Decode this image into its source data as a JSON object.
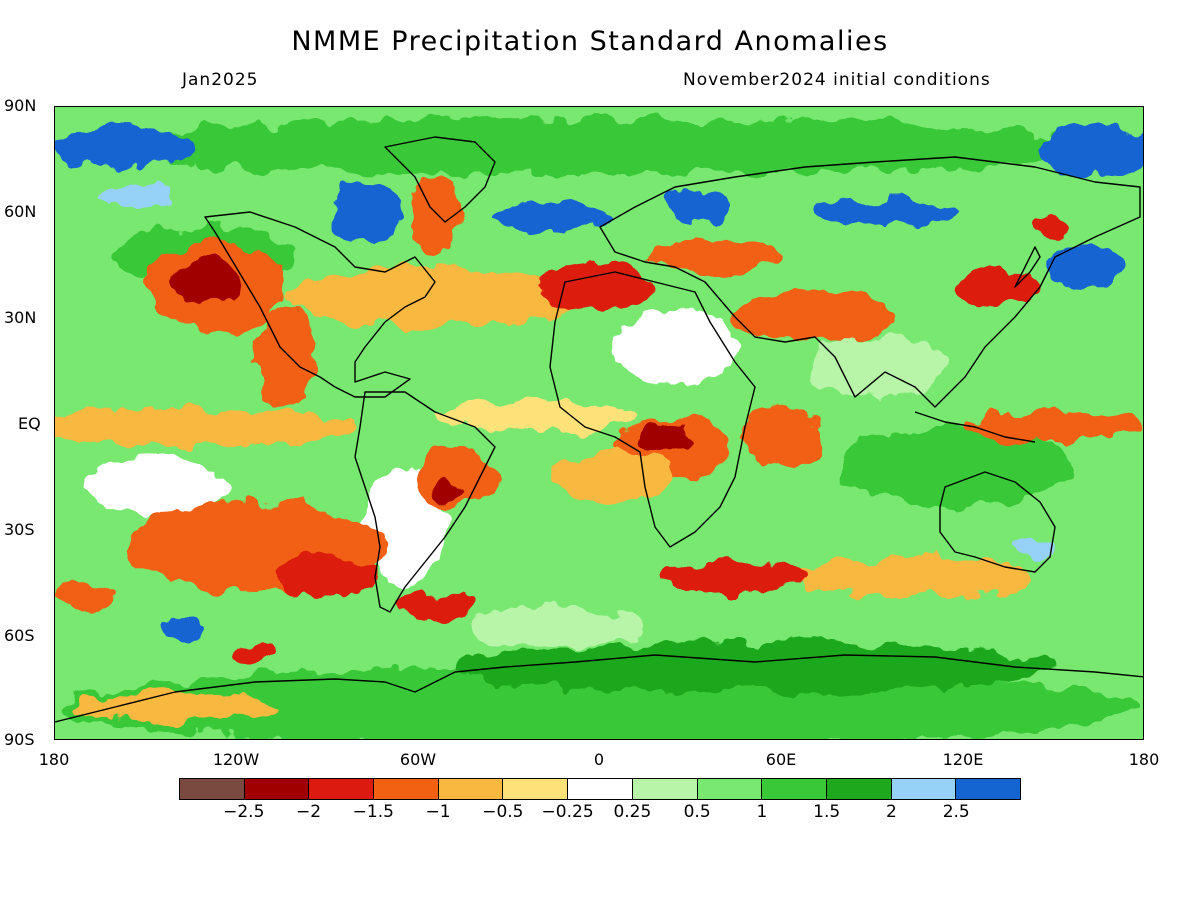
{
  "title": "NMME Precipitation Standard Anomalies",
  "valid_month": "Jan2025",
  "initial_conditions": "November2024 initial conditions",
  "axes": {
    "y_labels": [
      "90N",
      "60N",
      "30N",
      "EQ",
      "30S",
      "60S",
      "90S"
    ],
    "x_labels": [
      "180",
      "120W",
      "60W",
      "0",
      "60E",
      "120E",
      "180"
    ]
  },
  "colorbar": {
    "colors": [
      "#7a4a40",
      "#a00000",
      "#dc1a10",
      "#f26012",
      "#f9b840",
      "#fde27a",
      "#ffffff",
      "#b8f5a8",
      "#78e870",
      "#38c838",
      "#1ea81e",
      "#96d2f8",
      "#1464d2"
    ],
    "labels": [
      "−2.5",
      "−2",
      "−1.5",
      "−1",
      "−0.5",
      "−0.25",
      "0.25",
      "0.5",
      "1",
      "1.5",
      "2",
      "2.5"
    ]
  }
}
